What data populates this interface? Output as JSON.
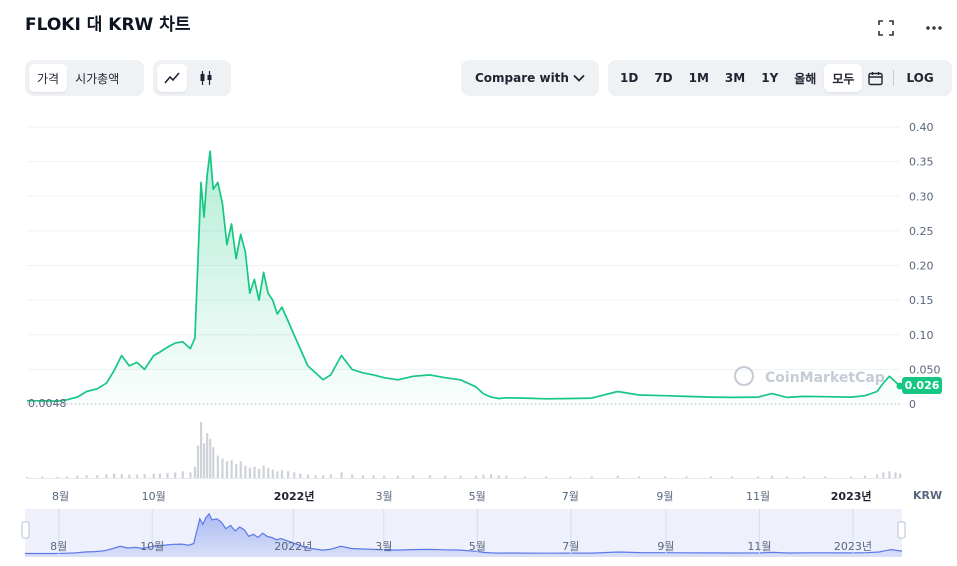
{
  "header": {
    "title": "FLOKI 대 KRW 차트"
  },
  "icons": {
    "fullscreen": "fullscreen-icon",
    "more": "more-dots-icon",
    "line": "line-chart-icon",
    "candle": "candlestick-icon",
    "calendar": "calendar-icon",
    "chevron": "chevron-down-icon"
  },
  "toolbar": {
    "metric_tabs": [
      {
        "label": "가격"
      },
      {
        "label": "시가총액"
      }
    ],
    "active_metric": "가격",
    "compare_label": "Compare with",
    "ranges": [
      {
        "label": "1D"
      },
      {
        "label": "7D"
      },
      {
        "label": "1M"
      },
      {
        "label": "3M"
      },
      {
        "label": "1Y"
      },
      {
        "label": "올해"
      },
      {
        "label": "모두"
      }
    ],
    "log_label": "LOG"
  },
  "watermark": "CoinMarketCap",
  "colors": {
    "line": "#16c784",
    "volume": "#cfd3d8",
    "navigator": "#5b79e8",
    "grid": "#eff2f5"
  },
  "chart_data": {
    "type": "line",
    "title": "FLOKI 대 KRW 차트",
    "currency_label": "KRW",
    "ylim": [
      0,
      0.4
    ],
    "y_ticks": [
      "0.40",
      "0.35",
      "0.30",
      "0.25",
      "0.20",
      "0.15",
      "0.10",
      "0.050",
      "0"
    ],
    "x_ticks": [
      "8월",
      "10월",
      "2022년",
      "3월",
      "5월",
      "7월",
      "9월",
      "11월",
      "2023년"
    ],
    "start_price_label": "0.0048",
    "current_price_label": "0.026",
    "grid": true,
    "series": [
      {
        "x": [
          "2021-07-10",
          "2021-07-20",
          "2021-07-30",
          "2021-08-05",
          "2021-08-12",
          "2021-08-18",
          "2021-08-25",
          "2021-08-31",
          "2021-09-05",
          "2021-09-10",
          "2021-09-15",
          "2021-09-20",
          "2021-09-25",
          "2021-10-01",
          "2021-10-05",
          "2021-10-10",
          "2021-10-15",
          "2021-10-20",
          "2021-10-25",
          "2021-10-28",
          "2021-10-30",
          "2021-11-01",
          "2021-11-03",
          "2021-11-05",
          "2021-11-07",
          "2021-11-09",
          "2021-11-12",
          "2021-11-15",
          "2021-11-18",
          "2021-11-21",
          "2021-11-24",
          "2021-11-27",
          "2021-11-30",
          "2021-12-03",
          "2021-12-06",
          "2021-12-09",
          "2021-12-12",
          "2021-12-15",
          "2021-12-18",
          "2021-12-21",
          "2021-12-24",
          "2021-12-28",
          "2022-01-01",
          "2022-01-05",
          "2022-01-10",
          "2022-01-15",
          "2022-01-20",
          "2022-01-25",
          "2022-02-01",
          "2022-02-08",
          "2022-02-15",
          "2022-02-22",
          "2022-03-01",
          "2022-03-10",
          "2022-03-20",
          "2022-03-31",
          "2022-04-10",
          "2022-04-20",
          "2022-04-30",
          "2022-05-05",
          "2022-05-10",
          "2022-05-15",
          "2022-05-20",
          "2022-06-01",
          "2022-06-15",
          "2022-07-01",
          "2022-07-15",
          "2022-08-01",
          "2022-08-15",
          "2022-09-01",
          "2022-09-15",
          "2022-10-01",
          "2022-10-15",
          "2022-11-01",
          "2022-11-10",
          "2022-11-20",
          "2022-12-01",
          "2022-12-15",
          "2023-01-01",
          "2023-01-10",
          "2023-01-18",
          "2023-01-22",
          "2023-01-26",
          "2023-01-30",
          "2023-02-02"
        ],
        "values": [
          0.0048,
          0.0045,
          0.0042,
          0.006,
          0.01,
          0.018,
          0.022,
          0.03,
          0.048,
          0.07,
          0.055,
          0.06,
          0.05,
          0.07,
          0.075,
          0.082,
          0.088,
          0.09,
          0.08,
          0.095,
          0.205,
          0.32,
          0.27,
          0.33,
          0.365,
          0.31,
          0.32,
          0.29,
          0.23,
          0.26,
          0.21,
          0.245,
          0.22,
          0.16,
          0.18,
          0.15,
          0.19,
          0.16,
          0.15,
          0.13,
          0.14,
          0.12,
          0.1,
          0.08,
          0.055,
          0.045,
          0.035,
          0.042,
          0.07,
          0.05,
          0.045,
          0.042,
          0.038,
          0.035,
          0.04,
          0.042,
          0.038,
          0.035,
          0.025,
          0.015,
          0.01,
          0.008,
          0.009,
          0.0085,
          0.0075,
          0.008,
          0.0085,
          0.018,
          0.013,
          0.012,
          0.011,
          0.01,
          0.0095,
          0.01,
          0.015,
          0.0095,
          0.011,
          0.0105,
          0.01,
          0.012,
          0.018,
          0.03,
          0.04,
          0.032,
          0.026
        ]
      }
    ],
    "volume": [
      0.02,
      0.03,
      0.02,
      0.03,
      0.04,
      0.05,
      0.05,
      0.07,
      0.08,
      0.07,
      0.06,
      0.06,
      0.07,
      0.08,
      0.08,
      0.09,
      0.1,
      0.12,
      0.1,
      0.2,
      0.58,
      1.0,
      0.62,
      0.8,
      0.7,
      0.55,
      0.4,
      0.35,
      0.3,
      0.32,
      0.25,
      0.3,
      0.22,
      0.18,
      0.2,
      0.16,
      0.22,
      0.18,
      0.15,
      0.12,
      0.14,
      0.12,
      0.1,
      0.08,
      0.06,
      0.05,
      0.05,
      0.06,
      0.1,
      0.06,
      0.05,
      0.05,
      0.04,
      0.04,
      0.05,
      0.05,
      0.04,
      0.04,
      0.04,
      0.06,
      0.07,
      0.05,
      0.04,
      0.03,
      0.03,
      0.03,
      0.03,
      0.04,
      0.03,
      0.03,
      0.03,
      0.03,
      0.03,
      0.03,
      0.04,
      0.03,
      0.03,
      0.03,
      0.03,
      0.04,
      0.06,
      0.1,
      0.12,
      0.1,
      0.08
    ]
  }
}
